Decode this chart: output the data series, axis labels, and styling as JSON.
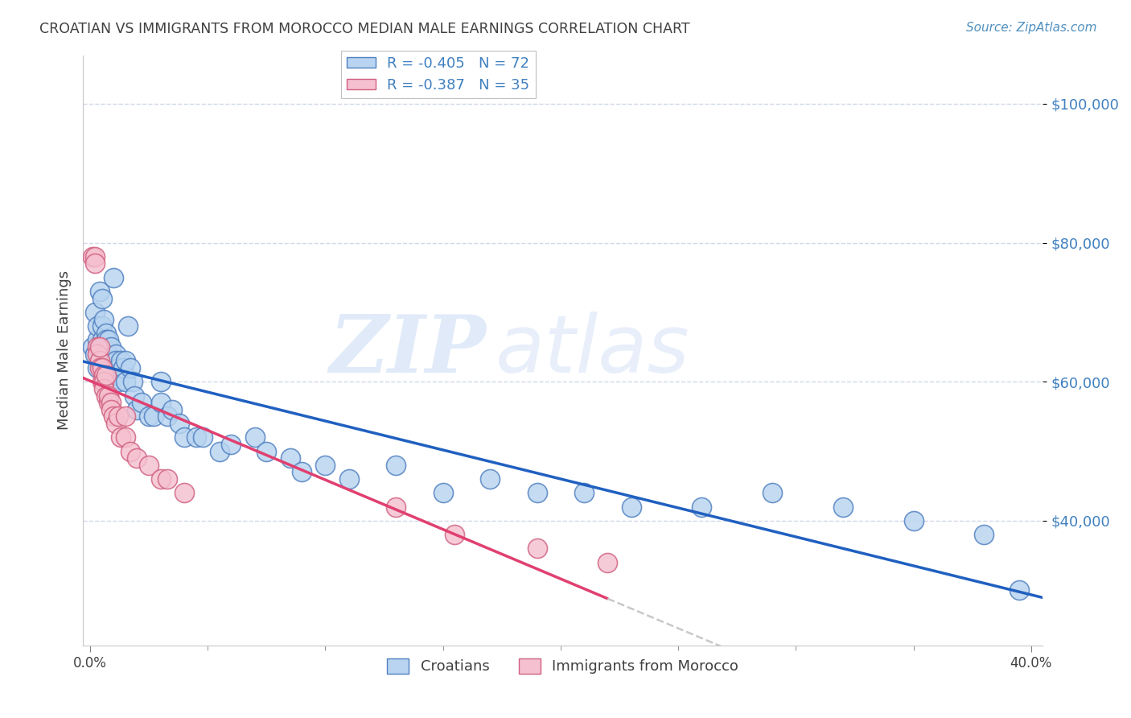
{
  "title": "CROATIAN VS IMMIGRANTS FROM MOROCCO MEDIAN MALE EARNINGS CORRELATION CHART",
  "source": "Source: ZipAtlas.com",
  "ylabel": "Median Male Earnings",
  "ytick_labels": [
    "$40,000",
    "$60,000",
    "$80,000",
    "$100,000"
  ],
  "ytick_vals": [
    40000,
    60000,
    80000,
    100000
  ],
  "ymin": 22000,
  "ymax": 107000,
  "xmin": -0.003,
  "xmax": 0.405,
  "xtick_vals": [
    0.0,
    0.4
  ],
  "xtick_labels": [
    "0.0%",
    "40.0%"
  ],
  "watermark_zip": "ZIP",
  "watermark_atlas": "atlas",
  "legend_entries": [
    {
      "label": "R = -0.405   N = 72",
      "color": "#b8d4f0",
      "edge_color": "#5080c0"
    },
    {
      "label": "R = -0.387   N = 35",
      "color": "#f5c0d0",
      "edge_color": "#d06080"
    }
  ],
  "croatians_x": [
    0.001,
    0.002,
    0.002,
    0.003,
    0.003,
    0.003,
    0.004,
    0.004,
    0.004,
    0.005,
    0.005,
    0.005,
    0.006,
    0.006,
    0.006,
    0.007,
    0.007,
    0.007,
    0.007,
    0.008,
    0.008,
    0.008,
    0.009,
    0.009,
    0.009,
    0.01,
    0.01,
    0.01,
    0.011,
    0.011,
    0.012,
    0.012,
    0.013,
    0.014,
    0.015,
    0.015,
    0.016,
    0.017,
    0.018,
    0.019,
    0.02,
    0.022,
    0.025,
    0.027,
    0.03,
    0.03,
    0.033,
    0.035,
    0.038,
    0.04,
    0.045,
    0.048,
    0.055,
    0.06,
    0.07,
    0.075,
    0.085,
    0.09,
    0.1,
    0.11,
    0.13,
    0.15,
    0.17,
    0.19,
    0.21,
    0.23,
    0.26,
    0.29,
    0.32,
    0.35,
    0.38,
    0.395
  ],
  "croatians_y": [
    65000,
    64000,
    70000,
    66000,
    68000,
    62000,
    65000,
    63000,
    73000,
    66000,
    72000,
    68000,
    69000,
    64000,
    65000,
    62000,
    65000,
    67000,
    66000,
    64000,
    63000,
    66000,
    60000,
    62000,
    65000,
    61000,
    63000,
    75000,
    64000,
    63000,
    62000,
    60000,
    63000,
    62000,
    60000,
    63000,
    68000,
    62000,
    60000,
    58000,
    56000,
    57000,
    55000,
    55000,
    57000,
    60000,
    55000,
    56000,
    54000,
    52000,
    52000,
    52000,
    50000,
    51000,
    52000,
    50000,
    49000,
    47000,
    48000,
    46000,
    48000,
    44000,
    46000,
    44000,
    44000,
    42000,
    42000,
    44000,
    42000,
    40000,
    38000,
    30000
  ],
  "morocco_x": [
    0.001,
    0.002,
    0.002,
    0.003,
    0.003,
    0.004,
    0.004,
    0.004,
    0.005,
    0.005,
    0.006,
    0.006,
    0.006,
    0.007,
    0.007,
    0.008,
    0.008,
    0.009,
    0.009,
    0.01,
    0.011,
    0.012,
    0.013,
    0.015,
    0.015,
    0.017,
    0.02,
    0.025,
    0.03,
    0.033,
    0.04,
    0.13,
    0.155,
    0.19,
    0.22
  ],
  "morocco_y": [
    78000,
    78000,
    77000,
    65000,
    64000,
    63000,
    62000,
    65000,
    60000,
    62000,
    61000,
    60000,
    59000,
    58000,
    61000,
    57000,
    58000,
    57000,
    56000,
    55000,
    54000,
    55000,
    52000,
    52000,
    55000,
    50000,
    49000,
    48000,
    46000,
    46000,
    44000,
    42000,
    38000,
    36000,
    34000
  ],
  "blue_dot_color": "#b8d4f0",
  "blue_dot_edge": "#5080c0",
  "pink_dot_color": "#f5c0d0",
  "pink_dot_edge": "#d06080",
  "blue_line_color": "#2060c0",
  "pink_line_color": "#e04070",
  "dashed_extension_color": "#c8c8c8",
  "grid_color": "#d0d8e8",
  "title_color": "#404040",
  "source_color": "#5090c0",
  "ytick_color": "#4080c0",
  "background_color": "#ffffff"
}
